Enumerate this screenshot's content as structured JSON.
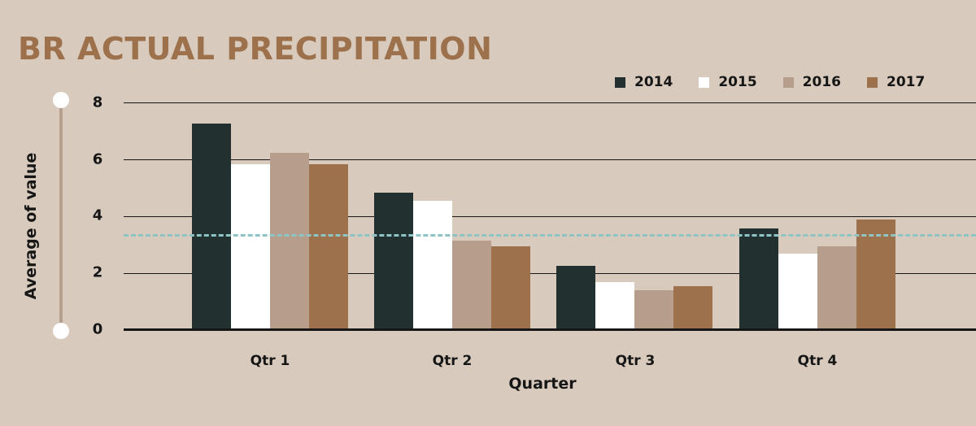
{
  "title": "BR ACTUAL PRECIPITATION",
  "colors": {
    "2014": "#223030",
    "2015": "#ffffff",
    "2016": "#b79d8c",
    "2017": "#9c714c",
    "average_line": "#8ec4c4",
    "title": "#9c714c",
    "background": "#d8cabc"
  },
  "legend": [
    {
      "label": "2014",
      "color": "#223030"
    },
    {
      "label": "2015",
      "color": "#ffffff"
    },
    {
      "label": "2016",
      "color": "#b79d8c"
    },
    {
      "label": "2017",
      "color": "#9c714c"
    }
  ],
  "axes": {
    "ylabel": "Average of value",
    "xlabel": "Quarter",
    "yticks": [
      "0",
      "2",
      "4",
      "6",
      "8"
    ],
    "xticks": [
      "Qtr 1",
      "Qtr 2",
      "Qtr 3",
      "Qtr 4"
    ]
  },
  "chart_data": {
    "type": "bar",
    "title": "BR ACTUAL PRECIPITATION",
    "xlabel": "Quarter",
    "ylabel": "Average of value",
    "categories": [
      "Qtr 1",
      "Qtr 2",
      "Qtr 3",
      "Qtr 4"
    ],
    "series": [
      {
        "name": "2014",
        "values": [
          7.25,
          4.81,
          2.23,
          3.55
        ]
      },
      {
        "name": "2015",
        "values": [
          5.82,
          4.53,
          1.66,
          2.66
        ]
      },
      {
        "name": "2016",
        "values": [
          6.22,
          3.12,
          1.38,
          2.92
        ]
      },
      {
        "name": "2017",
        "values": [
          5.82,
          2.92,
          1.52,
          3.87
        ]
      }
    ],
    "reference_lines": [
      {
        "type": "average",
        "value": 3.32,
        "style": "dashed",
        "color": "#8ec4c4"
      }
    ],
    "ylim": [
      0,
      8
    ],
    "yticks": [
      0,
      2,
      4,
      6,
      8
    ],
    "grid": true,
    "legend_position": "top-right"
  }
}
